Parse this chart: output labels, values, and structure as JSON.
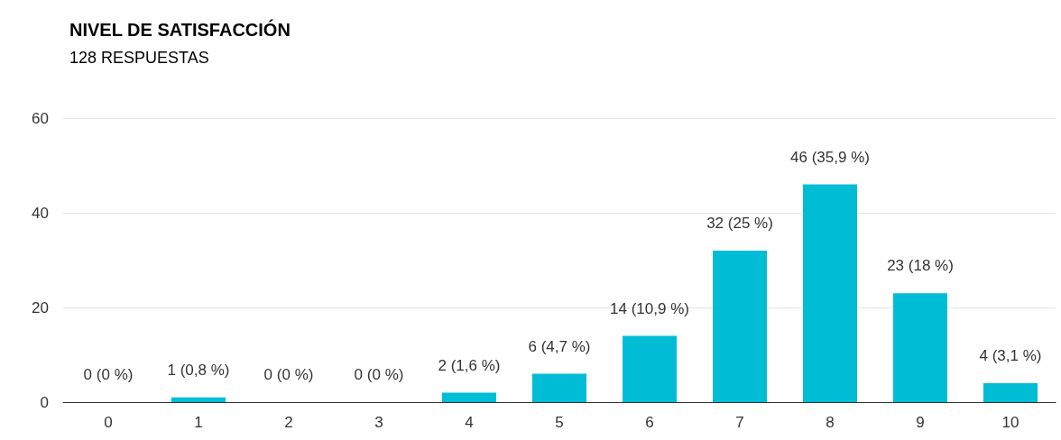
{
  "chart_data": {
    "type": "bar",
    "title": "NIVEL DE SATISFACCIÓN",
    "subtitle": "128 RESPUESTAS",
    "categories": [
      "0",
      "1",
      "2",
      "3",
      "4",
      "5",
      "6",
      "7",
      "8",
      "9",
      "10"
    ],
    "values": [
      0,
      1,
      0,
      0,
      2,
      6,
      14,
      32,
      46,
      23,
      4
    ],
    "value_labels": [
      "0 (0 %)",
      "1 (0,8 %)",
      "0 (0 %)",
      "0 (0 %)",
      "2 (1,6 %)",
      "6 (4,7 %)",
      "14 (10,9 %)",
      "32 (25 %)",
      "46 (35,9 %)",
      "23 (18 %)",
      "4 (3,1 %)"
    ],
    "color": "#00bcd4",
    "ylim": [
      0,
      60
    ],
    "yticks": [
      0,
      20,
      40,
      60
    ],
    "grid": "y"
  }
}
